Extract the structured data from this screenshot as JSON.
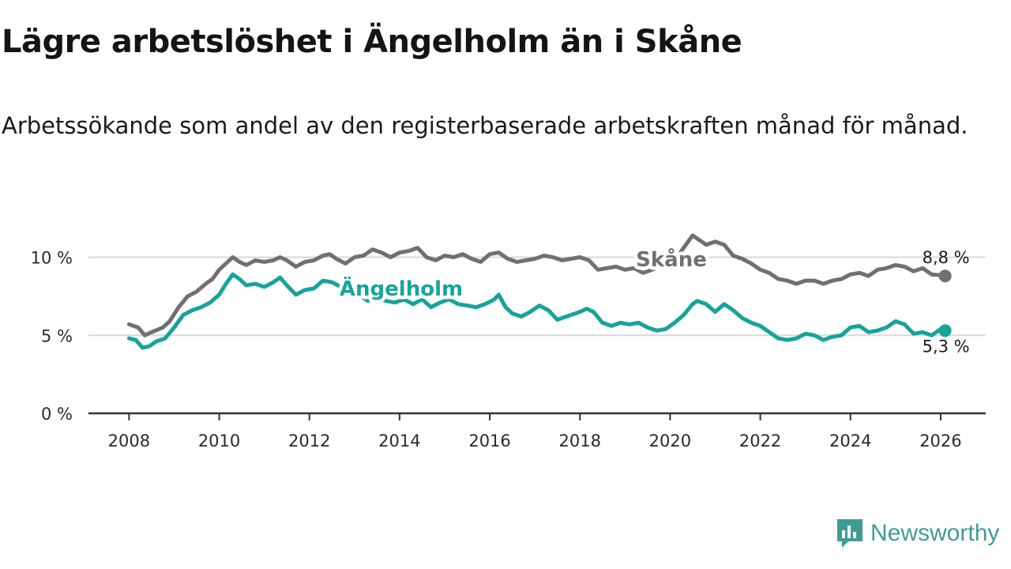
{
  "header": {
    "title": "Lägre arbetslöshet i Ängelholm än i Skåne",
    "subtitle": "Arbetssökande som andel av den registerbaserade arbetskraften månad för månad."
  },
  "brand": {
    "name": "Newsworthy",
    "color": "#3f9c94"
  },
  "chart_data": {
    "type": "line",
    "title": "Lägre arbetslöshet i Ängelholm än i Skåne",
    "subtitle": "Arbetssökande som andel av den registerbaserade arbetskraften månad för månad.",
    "xlabel": "",
    "ylabel": "",
    "xlim": [
      2007.1,
      2027.0
    ],
    "ylim": [
      0,
      12
    ],
    "x_ticks": [
      {
        "value": 2008,
        "label": "2008"
      },
      {
        "value": 2010,
        "label": "2010"
      },
      {
        "value": 2012,
        "label": "2012"
      },
      {
        "value": 2014,
        "label": "2014"
      },
      {
        "value": 2016,
        "label": "2016"
      },
      {
        "value": 2018,
        "label": "2018"
      },
      {
        "value": 2020,
        "label": "2020"
      },
      {
        "value": 2022,
        "label": "2022"
      },
      {
        "value": 2024,
        "label": "2024"
      },
      {
        "value": 2026,
        "label": "2026"
      }
    ],
    "y_ticks": [
      {
        "value": 0,
        "label": "0 %"
      },
      {
        "value": 5,
        "label": "5 %"
      },
      {
        "value": 10,
        "label": "10 %"
      }
    ],
    "grid": true,
    "series": [
      {
        "name": "Skåne",
        "color": "#707074",
        "end_label": "8,8 %",
        "points": [
          [
            2008.0,
            5.7
          ],
          [
            2008.2,
            5.5
          ],
          [
            2008.35,
            5.0
          ],
          [
            2008.5,
            5.2
          ],
          [
            2008.75,
            5.5
          ],
          [
            2008.9,
            5.9
          ],
          [
            2009.1,
            6.8
          ],
          [
            2009.3,
            7.5
          ],
          [
            2009.5,
            7.8
          ],
          [
            2009.7,
            8.3
          ],
          [
            2009.85,
            8.6
          ],
          [
            2010.0,
            9.2
          ],
          [
            2010.15,
            9.6
          ],
          [
            2010.3,
            10.0
          ],
          [
            2010.45,
            9.7
          ],
          [
            2010.6,
            9.5
          ],
          [
            2010.8,
            9.8
          ],
          [
            2011.0,
            9.7
          ],
          [
            2011.2,
            9.8
          ],
          [
            2011.35,
            10.0
          ],
          [
            2011.5,
            9.8
          ],
          [
            2011.7,
            9.4
          ],
          [
            2011.9,
            9.7
          ],
          [
            2012.1,
            9.8
          ],
          [
            2012.3,
            10.1
          ],
          [
            2012.45,
            10.2
          ],
          [
            2012.6,
            9.9
          ],
          [
            2012.8,
            9.6
          ],
          [
            2013.0,
            10.0
          ],
          [
            2013.2,
            10.1
          ],
          [
            2013.4,
            10.5
          ],
          [
            2013.6,
            10.3
          ],
          [
            2013.8,
            10.0
          ],
          [
            2014.0,
            10.3
          ],
          [
            2014.2,
            10.4
          ],
          [
            2014.4,
            10.6
          ],
          [
            2014.6,
            10.0
          ],
          [
            2014.8,
            9.8
          ],
          [
            2015.0,
            10.1
          ],
          [
            2015.2,
            10.0
          ],
          [
            2015.4,
            10.2
          ],
          [
            2015.6,
            9.9
          ],
          [
            2015.8,
            9.7
          ],
          [
            2016.0,
            10.2
          ],
          [
            2016.2,
            10.3
          ],
          [
            2016.4,
            9.9
          ],
          [
            2016.6,
            9.7
          ],
          [
            2016.8,
            9.8
          ],
          [
            2017.0,
            9.9
          ],
          [
            2017.2,
            10.1
          ],
          [
            2017.4,
            10.0
          ],
          [
            2017.6,
            9.8
          ],
          [
            2017.8,
            9.9
          ],
          [
            2018.0,
            10.0
          ],
          [
            2018.2,
            9.8
          ],
          [
            2018.4,
            9.2
          ],
          [
            2018.6,
            9.3
          ],
          [
            2018.8,
            9.4
          ],
          [
            2019.0,
            9.2
          ],
          [
            2019.2,
            9.3
          ],
          [
            2019.4,
            9.0
          ],
          [
            2019.6,
            9.2
          ],
          [
            2019.8,
            9.5
          ],
          [
            2020.0,
            9.6
          ],
          [
            2020.2,
            10.2
          ],
          [
            2020.4,
            11.0
          ],
          [
            2020.5,
            11.4
          ],
          [
            2020.6,
            11.2
          ],
          [
            2020.8,
            10.8
          ],
          [
            2021.0,
            11.0
          ],
          [
            2021.2,
            10.8
          ],
          [
            2021.4,
            10.1
          ],
          [
            2021.6,
            9.9
          ],
          [
            2021.8,
            9.6
          ],
          [
            2022.0,
            9.2
          ],
          [
            2022.2,
            9.0
          ],
          [
            2022.4,
            8.6
          ],
          [
            2022.6,
            8.5
          ],
          [
            2022.8,
            8.3
          ],
          [
            2023.0,
            8.5
          ],
          [
            2023.2,
            8.5
          ],
          [
            2023.4,
            8.3
          ],
          [
            2023.6,
            8.5
          ],
          [
            2023.8,
            8.6
          ],
          [
            2024.0,
            8.9
          ],
          [
            2024.2,
            9.0
          ],
          [
            2024.4,
            8.8
          ],
          [
            2024.6,
            9.2
          ],
          [
            2024.8,
            9.3
          ],
          [
            2025.0,
            9.5
          ],
          [
            2025.2,
            9.4
          ],
          [
            2025.4,
            9.1
          ],
          [
            2025.6,
            9.3
          ],
          [
            2025.8,
            8.9
          ],
          [
            2026.0,
            8.85
          ],
          [
            2026.1,
            8.8
          ]
        ]
      },
      {
        "name": "Ängelholm",
        "color": "#17a39a",
        "end_label": "5,3 %",
        "points": [
          [
            2008.0,
            4.8
          ],
          [
            2008.15,
            4.7
          ],
          [
            2008.3,
            4.2
          ],
          [
            2008.45,
            4.3
          ],
          [
            2008.6,
            4.6
          ],
          [
            2008.8,
            4.8
          ],
          [
            2009.0,
            5.5
          ],
          [
            2009.2,
            6.3
          ],
          [
            2009.4,
            6.6
          ],
          [
            2009.6,
            6.8
          ],
          [
            2009.8,
            7.1
          ],
          [
            2010.0,
            7.6
          ],
          [
            2010.15,
            8.3
          ],
          [
            2010.3,
            8.9
          ],
          [
            2010.45,
            8.6
          ],
          [
            2010.6,
            8.2
          ],
          [
            2010.8,
            8.3
          ],
          [
            2011.0,
            8.1
          ],
          [
            2011.2,
            8.4
          ],
          [
            2011.35,
            8.7
          ],
          [
            2011.5,
            8.2
          ],
          [
            2011.7,
            7.6
          ],
          [
            2011.9,
            7.9
          ],
          [
            2012.1,
            8.0
          ],
          [
            2012.3,
            8.5
          ],
          [
            2012.5,
            8.4
          ],
          [
            2012.7,
            8.1
          ],
          [
            2012.9,
            7.9
          ],
          [
            2013.1,
            7.6
          ],
          [
            2013.3,
            7.2
          ],
          [
            2013.5,
            7.4
          ],
          [
            2013.7,
            7.2
          ],
          [
            2013.9,
            7.1
          ],
          [
            2014.1,
            7.3
          ],
          [
            2014.3,
            7.0
          ],
          [
            2014.5,
            7.3
          ],
          [
            2014.7,
            6.8
          ],
          [
            2014.9,
            7.1
          ],
          [
            2015.1,
            7.3
          ],
          [
            2015.3,
            7.0
          ],
          [
            2015.5,
            6.9
          ],
          [
            2015.7,
            6.8
          ],
          [
            2015.9,
            7.0
          ],
          [
            2016.1,
            7.3
          ],
          [
            2016.2,
            7.6
          ],
          [
            2016.35,
            6.8
          ],
          [
            2016.5,
            6.4
          ],
          [
            2016.7,
            6.2
          ],
          [
            2016.9,
            6.5
          ],
          [
            2017.1,
            6.9
          ],
          [
            2017.3,
            6.6
          ],
          [
            2017.5,
            6.0
          ],
          [
            2017.7,
            6.2
          ],
          [
            2017.9,
            6.4
          ],
          [
            2018.0,
            6.5
          ],
          [
            2018.15,
            6.7
          ],
          [
            2018.3,
            6.5
          ],
          [
            2018.5,
            5.8
          ],
          [
            2018.7,
            5.6
          ],
          [
            2018.9,
            5.8
          ],
          [
            2019.1,
            5.7
          ],
          [
            2019.3,
            5.8
          ],
          [
            2019.5,
            5.5
          ],
          [
            2019.7,
            5.3
          ],
          [
            2019.9,
            5.4
          ],
          [
            2020.1,
            5.8
          ],
          [
            2020.3,
            6.3
          ],
          [
            2020.5,
            7.0
          ],
          [
            2020.6,
            7.2
          ],
          [
            2020.8,
            7.0
          ],
          [
            2021.0,
            6.5
          ],
          [
            2021.2,
            7.0
          ],
          [
            2021.4,
            6.6
          ],
          [
            2021.6,
            6.1
          ],
          [
            2021.8,
            5.8
          ],
          [
            2022.0,
            5.6
          ],
          [
            2022.2,
            5.2
          ],
          [
            2022.4,
            4.8
          ],
          [
            2022.6,
            4.7
          ],
          [
            2022.8,
            4.8
          ],
          [
            2023.0,
            5.1
          ],
          [
            2023.2,
            5.0
          ],
          [
            2023.4,
            4.7
          ],
          [
            2023.6,
            4.9
          ],
          [
            2023.8,
            5.0
          ],
          [
            2024.0,
            5.5
          ],
          [
            2024.2,
            5.6
          ],
          [
            2024.4,
            5.2
          ],
          [
            2024.6,
            5.3
          ],
          [
            2024.8,
            5.5
          ],
          [
            2025.0,
            5.9
          ],
          [
            2025.2,
            5.7
          ],
          [
            2025.4,
            5.1
          ],
          [
            2025.6,
            5.2
          ],
          [
            2025.8,
            5.0
          ],
          [
            2026.0,
            5.4
          ],
          [
            2026.1,
            5.3
          ]
        ]
      }
    ]
  }
}
